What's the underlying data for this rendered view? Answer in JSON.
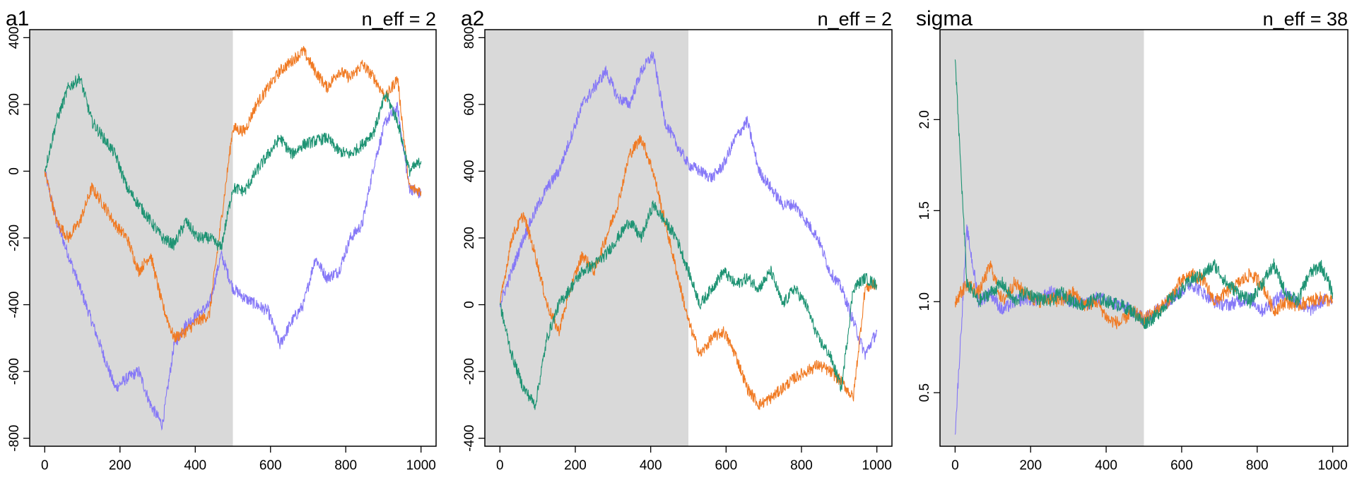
{
  "chart_data": [
    {
      "type": "line",
      "title": "a1",
      "annotation": "n_eff = 2",
      "xlim": [
        0,
        1000
      ],
      "ylim": [
        -800,
        400
      ],
      "xticks": [
        0,
        200,
        400,
        600,
        800,
        1000
      ],
      "yticks": [
        -800,
        -600,
        -400,
        -200,
        0,
        200,
        400
      ],
      "warmup_end": 500,
      "series": [
        {
          "color": "#8577f7",
          "values": [
            0,
            -150,
            -250,
            -350,
            -450,
            -550,
            -650,
            -620,
            -600,
            -700,
            -760,
            -520,
            -460,
            -430,
            -400,
            -250,
            -350,
            -380,
            -400,
            -420,
            -520,
            -450,
            -400,
            -260,
            -320,
            -300,
            -200,
            -160,
            20,
            150,
            190,
            -50,
            -70
          ]
        },
        {
          "color": "#f07a23",
          "values": [
            0,
            -150,
            -200,
            -150,
            -50,
            -100,
            -160,
            -200,
            -300,
            -250,
            -400,
            -500,
            -480,
            -450,
            -430,
            -150,
            130,
            120,
            200,
            250,
            300,
            330,
            360,
            300,
            250,
            300,
            280,
            320,
            280,
            220,
            280,
            -50,
            -60
          ]
        },
        {
          "color": "#1e9373",
          "values": [
            0,
            150,
            250,
            280,
            150,
            100,
            50,
            -50,
            -100,
            -150,
            -200,
            -220,
            -150,
            -200,
            -200,
            -230,
            -50,
            -60,
            0,
            50,
            100,
            50,
            80,
            90,
            100,
            60,
            50,
            80,
            120,
            230,
            150,
            0,
            30
          ]
        }
      ]
    },
    {
      "type": "line",
      "title": "a2",
      "annotation": "n_eff = 2",
      "xlim": [
        0,
        1000
      ],
      "ylim": [
        -400,
        800
      ],
      "xticks": [
        0,
        200,
        400,
        600,
        800,
        1000
      ],
      "yticks": [
        -400,
        -200,
        0,
        200,
        400,
        600,
        800
      ],
      "warmup_end": 500,
      "series": [
        {
          "color": "#8577f7",
          "values": [
            0,
            100,
            200,
            280,
            350,
            400,
            500,
            600,
            650,
            700,
            620,
            600,
            700,
            750,
            550,
            480,
            420,
            400,
            380,
            420,
            500,
            550,
            400,
            350,
            300,
            300,
            250,
            200,
            100,
            50,
            -50,
            -150,
            -80
          ]
        },
        {
          "color": "#f07a23",
          "values": [
            0,
            200,
            270,
            150,
            0,
            -80,
            50,
            150,
            100,
            200,
            300,
            450,
            500,
            400,
            250,
            100,
            -50,
            -150,
            -100,
            -80,
            -150,
            -250,
            -300,
            -280,
            -250,
            -220,
            -200,
            -180,
            -200,
            -230,
            -280,
            50,
            60
          ]
        },
        {
          "color": "#1e9373",
          "values": [
            0,
            -150,
            -250,
            -300,
            -100,
            0,
            50,
            100,
            120,
            150,
            200,
            250,
            200,
            300,
            250,
            200,
            100,
            0,
            50,
            100,
            60,
            80,
            50,
            100,
            0,
            50,
            0,
            -100,
            -150,
            -250,
            50,
            80,
            60
          ]
        }
      ]
    },
    {
      "type": "line",
      "title": "sigma",
      "annotation": "n_eff = 38",
      "xlim": [
        0,
        1000
      ],
      "ylim": [
        0.25,
        2.45
      ],
      "xticks": [
        0,
        200,
        400,
        600,
        800,
        1000
      ],
      "yticks": [
        0.5,
        1.0,
        1.5,
        2.0
      ],
      "ytick_labels": [
        "0.5",
        "1.0",
        "1.5",
        "2.0"
      ],
      "warmup_end": 500,
      "series": [
        {
          "color": "#8577f7",
          "values": [
            0.27,
            1.4,
            1.0,
            1.05,
            0.95,
            1.0,
            1.02,
            1.0,
            1.05,
            1.03,
            1.0,
            0.98,
            1.02,
            1.0,
            0.98,
            0.95,
            0.9,
            0.95,
            1.0,
            1.05,
            1.1,
            1.05,
            1.0,
            0.98,
            1.0,
            1.02,
            0.95,
            1.0,
            1.05,
            1.0,
            0.95,
            1.0,
            1.02
          ]
        },
        {
          "color": "#f07a23",
          "values": [
            1.0,
            1.1,
            1.05,
            1.2,
            1.0,
            1.1,
            1.05,
            1.0,
            1.02,
            1.0,
            1.05,
            0.98,
            1.0,
            0.9,
            0.88,
            0.95,
            0.9,
            0.95,
            1.0,
            1.1,
            1.15,
            1.12,
            1.0,
            1.05,
            1.1,
            1.15,
            1.1,
            0.95,
            1.0,
            0.98,
            1.0,
            1.02,
            1.0
          ]
        },
        {
          "color": "#1e9373",
          "values": [
            2.33,
            1.1,
            1.0,
            1.05,
            1.1,
            1.0,
            1.05,
            1.02,
            1.0,
            1.05,
            1.0,
            0.98,
            1.02,
            1.0,
            0.98,
            0.95,
            0.88,
            0.92,
            1.0,
            1.05,
            1.12,
            1.15,
            1.2,
            1.1,
            1.05,
            1.0,
            1.1,
            1.2,
            1.05,
            1.0,
            1.15,
            1.2,
            1.05
          ]
        }
      ]
    }
  ]
}
